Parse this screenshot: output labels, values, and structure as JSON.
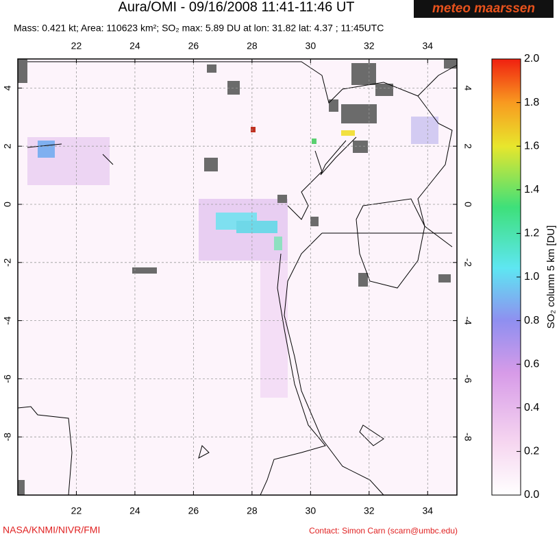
{
  "header": {
    "title": "Aura/OMI - 09/16/2008 11:41-11:46 UT",
    "logo": "meteo maarssen",
    "info": "Mass: 0.421 kt; Area: 110623 km²; SO₂ max: 5.89 DU at lon: 31.82 lat: 4.37 ; 11:45UTC"
  },
  "map": {
    "xlim": [
      20,
      35
    ],
    "ylim": [
      -10,
      5
    ],
    "xticks": [
      22,
      24,
      26,
      28,
      30,
      32,
      34
    ],
    "yticks": [
      4,
      2,
      0,
      -2,
      -4,
      -6,
      -8
    ]
  },
  "colorbar": {
    "label": "SO₂ column 5 km [DU]",
    "lim": [
      0,
      2
    ],
    "ticks": [
      {
        "value": 0,
        "label": "0.0"
      },
      {
        "value": 0.2,
        "label": "0.2"
      },
      {
        "value": 0.4,
        "label": "0.4"
      },
      {
        "value": 0.6,
        "label": "0.6"
      },
      {
        "value": 0.8,
        "label": "0.8"
      },
      {
        "value": 1,
        "label": "1.0"
      },
      {
        "value": 1.2,
        "label": "1.2"
      },
      {
        "value": 1.4,
        "label": "1.4"
      },
      {
        "value": 1.6,
        "label": "1.6"
      },
      {
        "value": 1.8,
        "label": "1.8"
      },
      {
        "value": 2,
        "label": "2.0"
      }
    ]
  },
  "footer": {
    "credit": "NASA/KNMI/NIVR/FMI",
    "contact": "Contact: Simon Carn (scarn@umbc.edu)"
  }
}
